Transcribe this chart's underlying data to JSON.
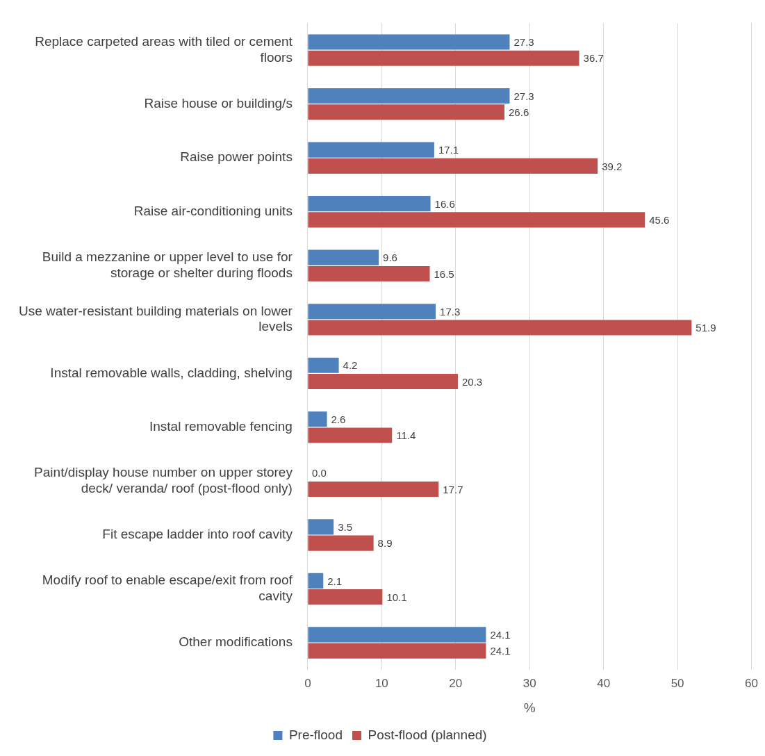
{
  "chart_data": {
    "type": "bar",
    "orientation": "horizontal",
    "categories": [
      "Replace carpeted areas with tiled or cement floors",
      "Raise house or building/s",
      "Raise power points",
      "Raise air-conditioning units",
      "Build a mezzanine or upper level to use for storage or shelter during floods",
      "Use water-resistant building materials on lower levels",
      "Instal removable walls, cladding, shelving",
      "Instal removable fencing",
      "Paint/display house number on upper storey deck/ veranda/ roof (post-flood only)",
      "Fit escape ladder into roof cavity",
      "Modify roof to enable escape/exit from roof cavity",
      "Other modifications"
    ],
    "series": [
      {
        "name": "Pre-flood",
        "color": "#4f81bd",
        "values": [
          27.3,
          27.3,
          17.1,
          16.6,
          9.6,
          17.3,
          4.2,
          2.6,
          0,
          3.5,
          2.1,
          24.1
        ],
        "value_labels": [
          "27.3",
          "27.3",
          "17.1",
          "16.6",
          "9.6",
          "17.3",
          "4.2",
          "2.6",
          "0.0",
          "3.5",
          "2.1",
          "24.1"
        ]
      },
      {
        "name": "Post-flood (planned)",
        "color": "#c0504d",
        "values": [
          36.7,
          26.6,
          39.2,
          45.6,
          16.5,
          51.9,
          20.3,
          11.4,
          17.7,
          8.9,
          10.1,
          24.1
        ],
        "value_labels": [
          "36.7",
          "26.6",
          "39.2",
          "45.6",
          "16.5",
          "51.9",
          "20.3",
          "11.4",
          "17.7",
          "8.9",
          "10.1",
          "24.1"
        ]
      }
    ],
    "xlabel": "%",
    "xlim": [
      0,
      60
    ],
    "xticks": [
      0,
      10,
      20,
      30,
      40,
      50,
      60
    ],
    "grid": "x",
    "legend": "bottom"
  }
}
